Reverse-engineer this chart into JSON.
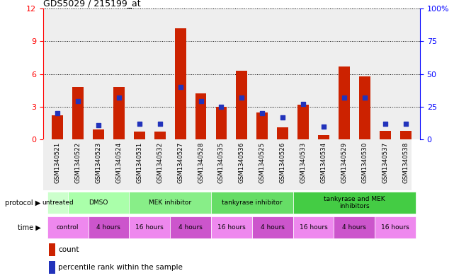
{
  "title": "GDS5029 / 215199_at",
  "samples": [
    "GSM1340521",
    "GSM1340522",
    "GSM1340523",
    "GSM1340524",
    "GSM1340531",
    "GSM1340532",
    "GSM1340527",
    "GSM1340528",
    "GSM1340535",
    "GSM1340536",
    "GSM1340525",
    "GSM1340526",
    "GSM1340533",
    "GSM1340534",
    "GSM1340529",
    "GSM1340530",
    "GSM1340537",
    "GSM1340538"
  ],
  "red_values": [
    2.2,
    4.8,
    0.9,
    4.8,
    0.7,
    0.7,
    10.2,
    4.2,
    3.0,
    6.3,
    2.5,
    1.1,
    3.2,
    0.4,
    6.7,
    5.8,
    0.8,
    0.8
  ],
  "blue_pct": [
    20,
    29,
    11,
    32,
    12,
    12,
    40,
    29,
    25,
    32,
    20,
    17,
    27,
    10,
    32,
    32,
    12,
    12
  ],
  "ylim_left": [
    0,
    12
  ],
  "ylim_right": [
    0,
    100
  ],
  "yticks_left": [
    0,
    3,
    6,
    9,
    12
  ],
  "yticks_right": [
    0,
    25,
    50,
    75,
    100
  ],
  "bar_color": "#cc2200",
  "square_color": "#2233bb",
  "bg_color": "#eeeeee",
  "proto_groups": [
    {
      "label": "untreated",
      "start": 0,
      "end": 0,
      "color": "#ccffcc"
    },
    {
      "label": "DMSO",
      "start": 1,
      "end": 3,
      "color": "#aaffaa"
    },
    {
      "label": "MEK inhibitor",
      "start": 4,
      "end": 7,
      "color": "#88ee88"
    },
    {
      "label": "tankyrase inhibitor",
      "start": 8,
      "end": 11,
      "color": "#66dd66"
    },
    {
      "label": "tankyrase and MEK\ninhibitors",
      "start": 12,
      "end": 17,
      "color": "#44cc44"
    }
  ],
  "time_groups": [
    {
      "label": "control",
      "start": 0,
      "end": 1,
      "color": "#ee88ee"
    },
    {
      "label": "4 hours",
      "start": 2,
      "end": 3,
      "color": "#cc55cc"
    },
    {
      "label": "16 hours",
      "start": 4,
      "end": 5,
      "color": "#ee88ee"
    },
    {
      "label": "4 hours",
      "start": 6,
      "end": 7,
      "color": "#cc55cc"
    },
    {
      "label": "16 hours",
      "start": 8,
      "end": 9,
      "color": "#ee88ee"
    },
    {
      "label": "4 hours",
      "start": 10,
      "end": 11,
      "color": "#cc55cc"
    },
    {
      "label": "16 hours",
      "start": 12,
      "end": 13,
      "color": "#ee88ee"
    },
    {
      "label": "4 hours",
      "start": 14,
      "end": 15,
      "color": "#cc55cc"
    },
    {
      "label": "16 hours",
      "start": 16,
      "end": 17,
      "color": "#ee88ee"
    }
  ],
  "legend_count_color": "#cc2200",
  "legend_pct_color": "#2233bb"
}
